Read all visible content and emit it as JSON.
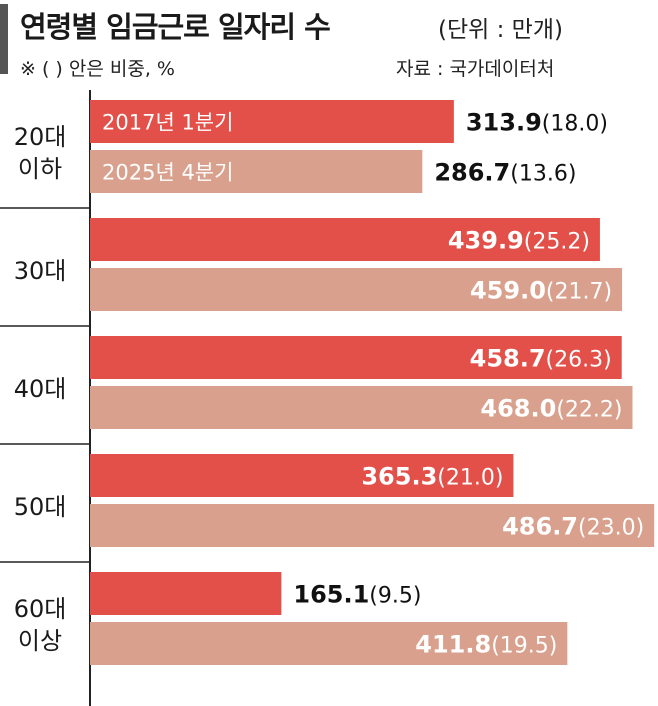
{
  "header": {
    "title": "연령별 임금근로 일자리 수",
    "unit": "(단위 : 만개)",
    "note": "※ (  ) 안은 비중, %",
    "source": "자료 : 국가데이터처"
  },
  "chart_data": {
    "type": "bar",
    "orientation": "horizontal",
    "title": "연령별 임금근로 일자리 수",
    "categories": [
      [
        "20대",
        "이하"
      ],
      [
        "30대"
      ],
      [
        "40대"
      ],
      [
        "50대"
      ],
      [
        "60대",
        "이상"
      ]
    ],
    "series": [
      {
        "name": "2017년 1분기",
        "color": "#e25049",
        "values": [
          313.9,
          439.9,
          458.7,
          365.3,
          165.1
        ],
        "shares": [
          "18.0",
          "25.2",
          "26.3",
          "21.0",
          "9.5"
        ]
      },
      {
        "name": "2025년 4분기",
        "color": "#d9a18d",
        "values": [
          286.7,
          459.0,
          468.0,
          486.7,
          411.8
        ],
        "shares": [
          "13.6",
          "21.7",
          "22.2",
          "23.0",
          "19.5"
        ]
      }
    ],
    "value_labels": [
      [
        "313.9",
        "439.9",
        "458.7",
        "365.3",
        "165.1"
      ],
      [
        "286.7",
        "459.0",
        "468.0",
        "486.7",
        "411.8"
      ]
    ],
    "xlim": [
      0,
      490
    ],
    "grid": false,
    "legend": "inside-first-bars"
  }
}
